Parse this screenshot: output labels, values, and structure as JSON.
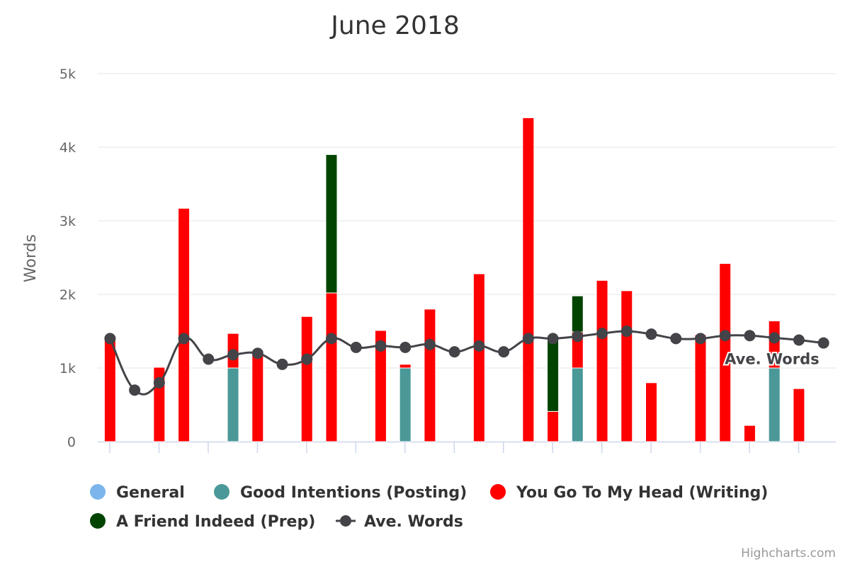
{
  "chart_data": {
    "type": "bar",
    "title": "June 2018",
    "ylabel": "Words",
    "ylim": [
      0,
      5000
    ],
    "yticks": [
      {
        "value": 0,
        "label": "0"
      },
      {
        "value": 1000,
        "label": "1k"
      },
      {
        "value": 2000,
        "label": "2k"
      },
      {
        "value": 3000,
        "label": "3k"
      },
      {
        "value": 4000,
        "label": "4k"
      },
      {
        "value": 5000,
        "label": "5k"
      }
    ],
    "x": [
      1,
      2,
      3,
      4,
      5,
      6,
      7,
      8,
      9,
      10,
      11,
      12,
      13,
      14,
      15,
      16,
      17,
      18,
      19,
      20,
      21,
      22,
      23,
      24,
      25,
      26,
      27,
      28,
      29,
      30
    ],
    "stacked": true,
    "series": [
      {
        "name": "General",
        "type": "bar",
        "color": "#7cb5ec",
        "values": [
          0,
          0,
          0,
          0,
          0,
          0,
          0,
          0,
          0,
          0,
          0,
          0,
          0,
          0,
          0,
          0,
          0,
          0,
          0,
          0,
          0,
          0,
          0,
          0,
          0,
          0,
          0,
          0,
          0,
          0
        ]
      },
      {
        "name": "Good Intentions (Posting)",
        "type": "bar",
        "color": "#4a9898",
        "values": [
          0,
          0,
          0,
          0,
          0,
          1000,
          0,
          0,
          0,
          0,
          0,
          0,
          1000,
          0,
          0,
          0,
          0,
          0,
          0,
          1000,
          0,
          0,
          0,
          0,
          0,
          0,
          0,
          1000,
          0,
          0
        ]
      },
      {
        "name": "You Go To My Head (Writing)",
        "type": "bar",
        "color": "#ff0000",
        "values": [
          1380,
          0,
          1010,
          3170,
          0,
          470,
          1240,
          0,
          1700,
          2020,
          0,
          1510,
          50,
          1800,
          0,
          2280,
          0,
          4400,
          410,
          490,
          2190,
          2050,
          800,
          0,
          1450,
          2420,
          220,
          640,
          720,
          0
        ]
      },
      {
        "name": "A Friend Indeed (Prep)",
        "type": "bar",
        "color": "#004400",
        "values": [
          0,
          0,
          0,
          0,
          0,
          0,
          0,
          0,
          0,
          1880,
          0,
          0,
          0,
          0,
          0,
          0,
          0,
          0,
          1020,
          490,
          0,
          0,
          0,
          0,
          0,
          0,
          0,
          0,
          0,
          0
        ]
      },
      {
        "name": "Ave. Words",
        "type": "line",
        "color": "#434348",
        "values": [
          1400,
          700,
          800,
          1400,
          1120,
          1180,
          1200,
          1050,
          1120,
          1400,
          1280,
          1300,
          1280,
          1320,
          1220,
          1300,
          1220,
          1400,
          1400,
          1430,
          1470,
          1500,
          1460,
          1400,
          1400,
          1440,
          1440,
          1410,
          1380,
          1340
        ],
        "end_label": "Ave. Words"
      }
    ],
    "legend": {
      "position": "bottom-left",
      "items": [
        {
          "label": "General",
          "color": "#7cb5ec",
          "symbol": "circle"
        },
        {
          "label": "Good Intentions (Posting)",
          "color": "#4a9898",
          "symbol": "circle"
        },
        {
          "label": "You Go To My Head (Writing)",
          "color": "#ff0000",
          "symbol": "circle"
        },
        {
          "label": "A Friend Indeed (Prep)",
          "color": "#004400",
          "symbol": "circle"
        },
        {
          "label": "Ave. Words",
          "color": "#434348",
          "symbol": "line-marker"
        }
      ]
    },
    "grid": true
  },
  "credits": "Highcharts.com"
}
